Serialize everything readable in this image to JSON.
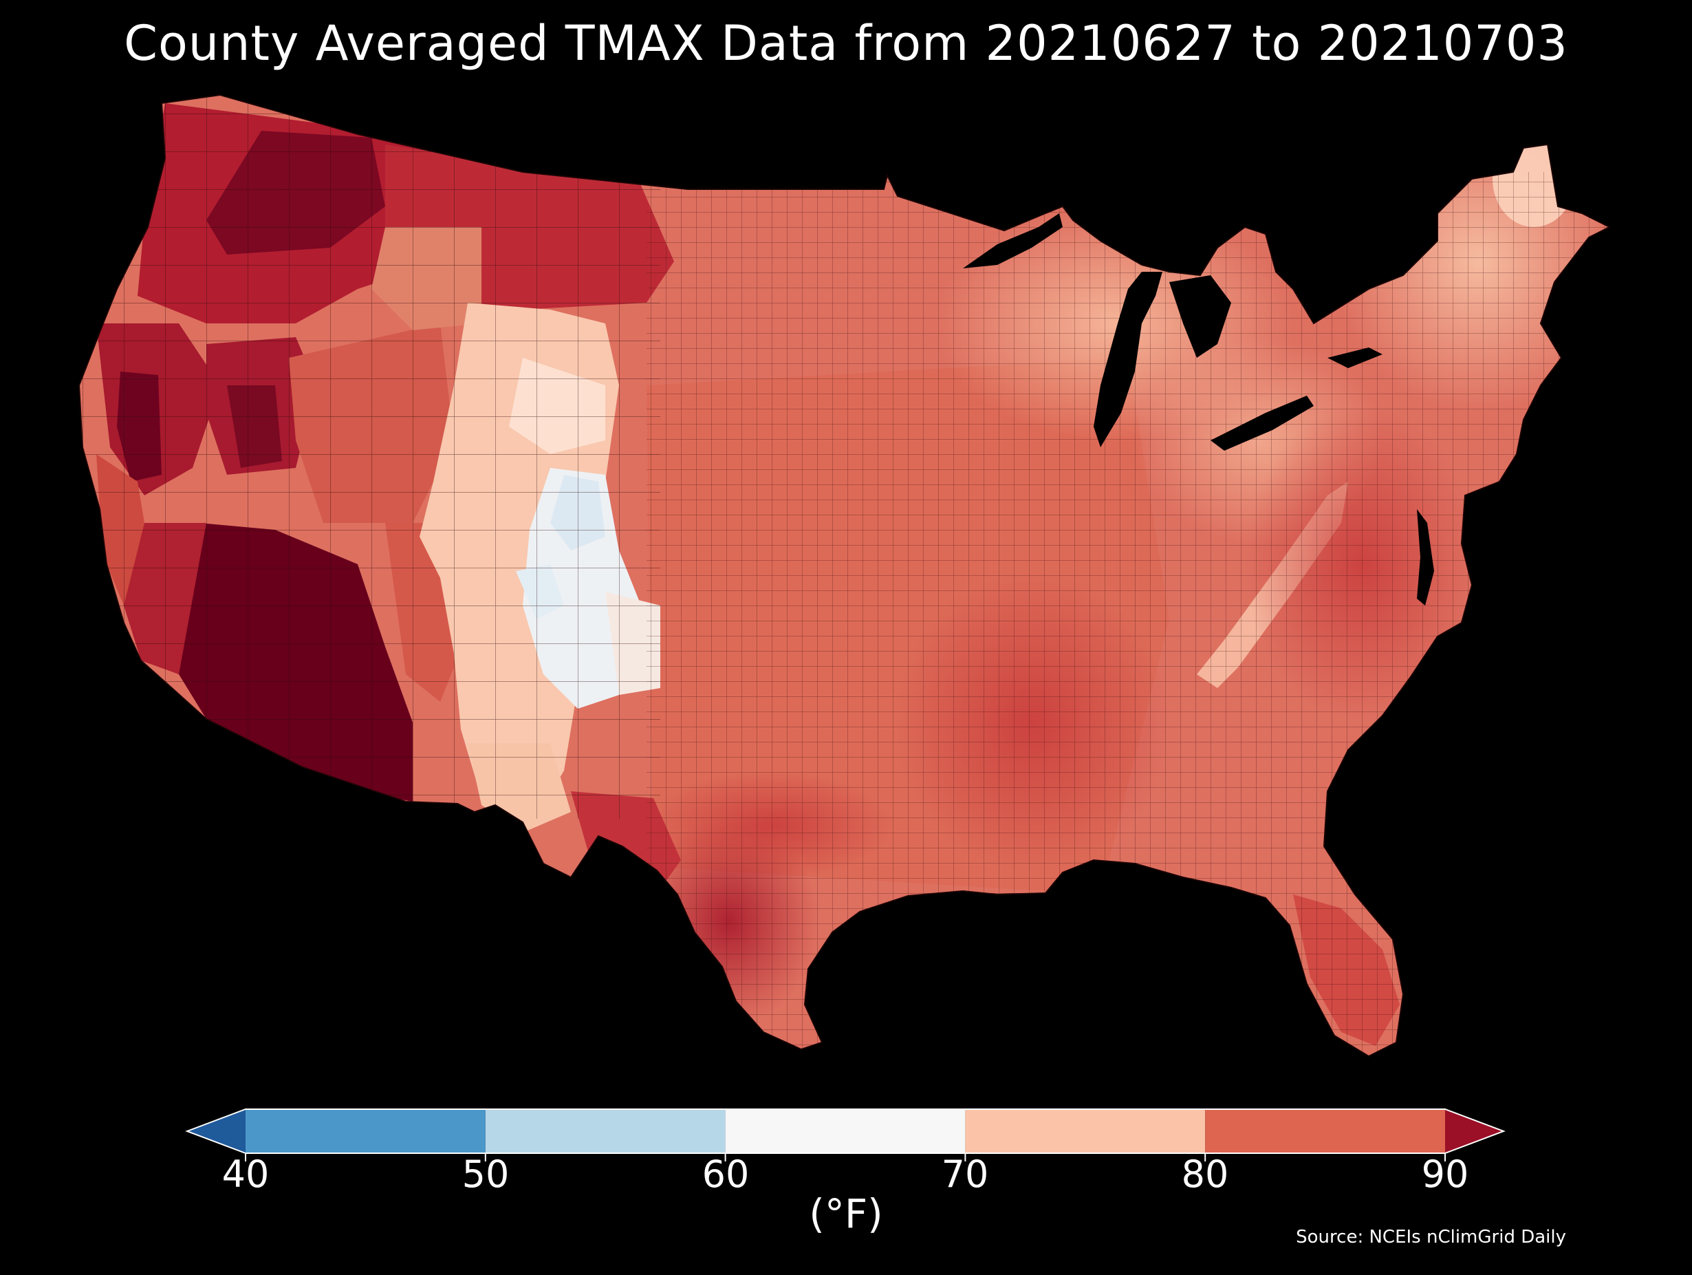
{
  "title": "County Averaged TMAX Data from 20210627 to 20210703",
  "source": "Source: NCEIs nClimGrid Daily",
  "colorbar": {
    "unit": "(°F)",
    "ticks": [
      "40",
      "50",
      "60",
      "70",
      "80",
      "90"
    ],
    "bins": [
      {
        "from": 30,
        "to": 40,
        "color": "#1f5a9b"
      },
      {
        "from": 40,
        "to": 50,
        "color": "#4b97c9"
      },
      {
        "from": 50,
        "to": 60,
        "color": "#b6d7e8"
      },
      {
        "from": 60,
        "to": 70,
        "color": "#f7f7f7"
      },
      {
        "from": 70,
        "to": 80,
        "color": "#fbc4a8"
      },
      {
        "from": 80,
        "to": 90,
        "color": "#de6650"
      },
      {
        "from": 90,
        "to": 100,
        "color": "#9b1027"
      }
    ]
  },
  "palette": {
    "background": "#000000",
    "very_hot": "#6b0019",
    "hot": "#b01c2e",
    "warm": "#d7594a",
    "mild": "#ea9378",
    "cool": "#fbd0b8",
    "cold": "#f2f4f6",
    "border": "#2a0a0a"
  }
}
